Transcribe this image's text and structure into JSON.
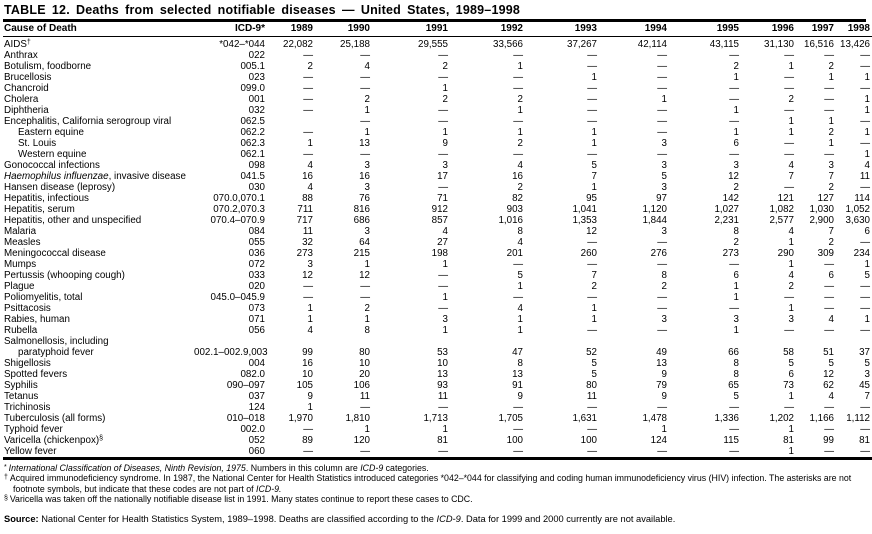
{
  "title": "TABLE 12. Deaths from selected notifiable diseases — United States, 1989–1998",
  "table": {
    "columns": [
      "Cause of Death",
      "ICD-9*",
      "1989",
      "1990",
      "1991",
      "1992",
      "1993",
      "1994",
      "1995",
      "1996",
      "1997",
      "1998"
    ],
    "rows": [
      {
        "cause": "AIDS",
        "sup": "†",
        "icd": "*042–*044",
        "v": [
          "22,082",
          "25,188",
          "29,555",
          "33,566",
          "37,267",
          "42,114",
          "43,115",
          "31,130",
          "16,516",
          "13,426"
        ]
      },
      {
        "cause": "Anthrax",
        "icd": "022",
        "v": [
          "—",
          "—",
          "—",
          "—",
          "—",
          "—",
          "—",
          "—",
          "—",
          "—"
        ]
      },
      {
        "cause": "Botulism, foodborne",
        "icd": "005.1",
        "v": [
          "2",
          "4",
          "2",
          "1",
          "—",
          "—",
          "2",
          "1",
          "2",
          "—"
        ]
      },
      {
        "cause": "Brucellosis",
        "icd": "023",
        "v": [
          "—",
          "—",
          "—",
          "—",
          "1",
          "—",
          "1",
          "—",
          "1",
          "1"
        ]
      },
      {
        "cause": "Chancroid",
        "icd": "099.0",
        "v": [
          "—",
          "—",
          "1",
          "—",
          "—",
          "—",
          "—",
          "—",
          "—",
          "—"
        ]
      },
      {
        "cause": "Cholera",
        "icd": "001",
        "v": [
          "—",
          "2",
          "2",
          "2",
          "—",
          "1",
          "—",
          "2",
          "—",
          "1"
        ]
      },
      {
        "cause": "Diphtheria",
        "icd": "032",
        "v": [
          "—",
          "1",
          "—",
          "1",
          "—",
          "—",
          "1",
          "—",
          "—",
          "1"
        ]
      },
      {
        "cause": "Encephalitis, California serogroup viral",
        "icd": "062.5",
        "v": [
          "",
          "—",
          "—",
          "—",
          "—",
          "—",
          "—",
          "1",
          "1",
          "—"
        ]
      },
      {
        "cause": "Eastern equine",
        "indent": 1,
        "icd": "062.2",
        "v": [
          "—",
          "1",
          "1",
          "1",
          "1",
          "—",
          "1",
          "1",
          "2",
          "1"
        ]
      },
      {
        "cause": "St. Louis",
        "indent": 1,
        "icd": "062.3",
        "v": [
          "1",
          "13",
          "9",
          "2",
          "1",
          "3",
          "6",
          "—",
          "1",
          "—"
        ]
      },
      {
        "cause": "Western equine",
        "indent": 1,
        "icd": "062.1",
        "v": [
          "—",
          "—",
          "—",
          "—",
          "—",
          "—",
          "—",
          "—",
          "—",
          "1"
        ]
      },
      {
        "cause": "Gonococcal infections",
        "icd": "098",
        "v": [
          "4",
          "3",
          "3",
          "4",
          "5",
          "3",
          "3",
          "4",
          "3",
          "4"
        ]
      },
      {
        "ci": "Haemophilus influenzae",
        "cause": ", invasive disease",
        "icd": "041.5",
        "v": [
          "16",
          "16",
          "17",
          "16",
          "7",
          "5",
          "12",
          "7",
          "7",
          "11"
        ]
      },
      {
        "cause": "Hansen disease (leprosy)",
        "icd": "030",
        "v": [
          "4",
          "3",
          "—",
          "2",
          "1",
          "3",
          "2",
          "—",
          "2",
          "—"
        ]
      },
      {
        "cause": "Hepatitis, infectious",
        "icd": "070.0,070.1",
        "v": [
          "88",
          "76",
          "71",
          "82",
          "95",
          "97",
          "142",
          "121",
          "127",
          "114"
        ]
      },
      {
        "cause": "Hepatitis, serum",
        "icd": "070.2,070.3",
        "v": [
          "711",
          "816",
          "912",
          "903",
          "1,041",
          "1,120",
          "1,027",
          "1,082",
          "1,030",
          "1,052"
        ]
      },
      {
        "cause": "Hepatitis, other and unspecified",
        "icd": "070.4–070.9",
        "v": [
          "717",
          "686",
          "857",
          "1,016",
          "1,353",
          "1,844",
          "2,231",
          "2,577",
          "2,900",
          "3,630"
        ]
      },
      {
        "cause": "Malaria",
        "icd": "084",
        "v": [
          "11",
          "3",
          "4",
          "8",
          "12",
          "3",
          "8",
          "4",
          "7",
          "6"
        ]
      },
      {
        "cause": "Measles",
        "icd": "055",
        "v": [
          "32",
          "64",
          "27",
          "4",
          "—",
          "—",
          "2",
          "1",
          "2",
          "—"
        ]
      },
      {
        "cause": "Meningococcal disease",
        "icd": "036",
        "v": [
          "273",
          "215",
          "198",
          "201",
          "260",
          "276",
          "273",
          "290",
          "309",
          "234"
        ]
      },
      {
        "cause": "Mumps",
        "icd": "072",
        "v": [
          "3",
          "1",
          "1",
          "—",
          "—",
          "—",
          "—",
          "1",
          "—",
          "1"
        ]
      },
      {
        "cause": "Pertussis (whooping cough)",
        "icd": "033",
        "v": [
          "12",
          "12",
          "—",
          "5",
          "7",
          "8",
          "6",
          "4",
          "6",
          "5"
        ]
      },
      {
        "cause": "Plague",
        "icd": "020",
        "v": [
          "—",
          "—",
          "—",
          "1",
          "2",
          "2",
          "1",
          "2",
          "—",
          "—"
        ]
      },
      {
        "cause": "Poliomyelitis, total",
        "icd": "045.0–045.9",
        "v": [
          "—",
          "—",
          "1",
          "—",
          "—",
          "—",
          "1",
          "—",
          "—",
          "—"
        ]
      },
      {
        "cause": "Psittacosis",
        "icd": "073",
        "v": [
          "1",
          "2",
          "—",
          "4",
          "1",
          "—",
          "—",
          "1",
          "—",
          "—"
        ]
      },
      {
        "cause": "Rabies, human",
        "icd": "071",
        "v": [
          "1",
          "1",
          "3",
          "1",
          "1",
          "3",
          "3",
          "3",
          "4",
          "1"
        ]
      },
      {
        "cause": "Rubella",
        "icd": "056",
        "v": [
          "4",
          "8",
          "1",
          "1",
          "—",
          "—",
          "1",
          "—",
          "—",
          "—"
        ]
      },
      {
        "cause": "Salmonellosis, including",
        "icd": "",
        "v": null
      },
      {
        "cause": "paratyphoid fever",
        "indent": 1,
        "icd": "002.1–002.9,003",
        "v": [
          "99",
          "80",
          "53",
          "47",
          "52",
          "49",
          "66",
          "58",
          "51",
          "37"
        ]
      },
      {
        "cause": "Shigellosis",
        "icd": "004",
        "v": [
          "16",
          "10",
          "10",
          "8",
          "5",
          "13",
          "8",
          "5",
          "5",
          "5"
        ]
      },
      {
        "cause": "Spotted fevers",
        "icd": "082.0",
        "v": [
          "10",
          "20",
          "13",
          "13",
          "5",
          "9",
          "8",
          "6",
          "12",
          "3"
        ]
      },
      {
        "cause": "Syphilis",
        "icd": "090–097",
        "v": [
          "105",
          "106",
          "93",
          "91",
          "80",
          "79",
          "65",
          "73",
          "62",
          "45"
        ]
      },
      {
        "cause": "Tetanus",
        "icd": "037",
        "v": [
          "9",
          "11",
          "11",
          "9",
          "11",
          "9",
          "5",
          "1",
          "4",
          "7"
        ]
      },
      {
        "cause": "Trichinosis",
        "icd": "124",
        "v": [
          "1",
          "—",
          "—",
          "—",
          "—",
          "—",
          "—",
          "—",
          "—",
          "—"
        ]
      },
      {
        "cause": "Tuberculosis (all forms)",
        "icd": "010–018",
        "v": [
          "1,970",
          "1,810",
          "1,713",
          "1,705",
          "1,631",
          "1,478",
          "1,336",
          "1,202",
          "1,166",
          "1,112"
        ]
      },
      {
        "cause": "Typhoid fever",
        "icd": "002.0",
        "v": [
          "—",
          "1",
          "1",
          "—",
          "—",
          "1",
          "—",
          "1",
          "—",
          "—"
        ]
      },
      {
        "cause": "Varicella (chickenpox)",
        "sup": "§",
        "icd": "052",
        "v": [
          "89",
          "120",
          "81",
          "100",
          "100",
          "124",
          "115",
          "81",
          "99",
          "81"
        ]
      },
      {
        "cause": "Yellow fever",
        "icd": "060",
        "v": [
          "—",
          "—",
          "—",
          "—",
          "—",
          "—",
          "—",
          "1",
          "—",
          "—"
        ]
      }
    ]
  },
  "footnotes": [
    {
      "symbol": "*",
      "segments": [
        {
          "t": "International Classification of Diseases, Ninth Revision, 1975",
          "i": true
        },
        {
          "t": ". Numbers in this column are ",
          "i": false
        },
        {
          "t": "ICD-9",
          "i": true
        },
        {
          "t": " categories.",
          "i": false
        }
      ]
    },
    {
      "symbol": "†",
      "segments": [
        {
          "t": "Acquired immunodeficiency syndrome.  In 1987, the National Center for Health Statistics introduced categories *042–*044 for classifying and coding human immunodeficiency virus (HIV) infection. The asterisks are not footnote symbols, but indicate that these codes are not part of ",
          "i": false
        },
        {
          "t": "ICD-9.",
          "i": true
        }
      ]
    },
    {
      "symbol": "§",
      "segments": [
        {
          "t": "Varicella was taken off the nationally notifiable disease list in 1991. Many states continue to report these cases to CDC.",
          "i": false
        }
      ]
    }
  ],
  "source": {
    "label": "Source:",
    "segments": [
      {
        "t": " National Center for Health Statistics System, 1989–1998. Deaths are classified according to the ",
        "i": false
      },
      {
        "t": "ICD-9",
        "i": true
      },
      {
        "t": ". Data for 1999 and 2000 currently are not available.",
        "i": false
      }
    ]
  }
}
